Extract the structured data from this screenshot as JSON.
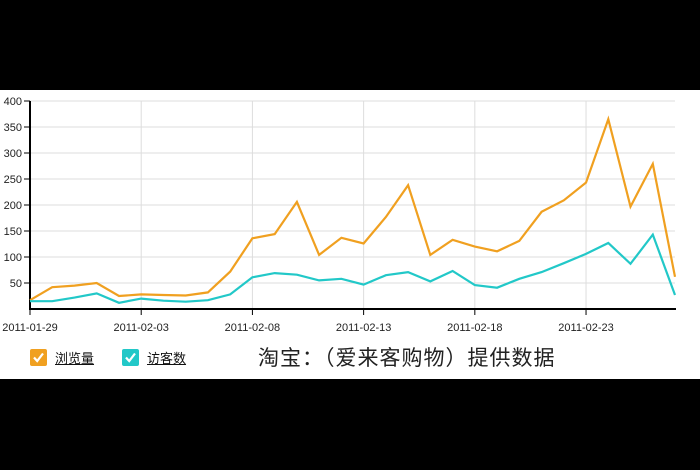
{
  "chart_data": {
    "type": "line",
    "title": "",
    "xlabel": "",
    "ylabel": "",
    "ylim": [
      0,
      400
    ],
    "yticks": [
      50,
      100,
      150,
      200,
      250,
      300,
      350,
      400
    ],
    "xtick_labels": [
      "2011-01-29",
      "2011-02-03",
      "2011-02-08",
      "2011-02-13",
      "2011-02-18",
      "2011-02-23"
    ],
    "grid": true,
    "legend_position": "bottom-left",
    "x": [
      "2011-01-29",
      "2011-01-30",
      "2011-01-31",
      "2011-02-01",
      "2011-02-02",
      "2011-02-03",
      "2011-02-04",
      "2011-02-05",
      "2011-02-06",
      "2011-02-07",
      "2011-02-08",
      "2011-02-09",
      "2011-02-10",
      "2011-02-11",
      "2011-02-12",
      "2011-02-13",
      "2011-02-14",
      "2011-02-15",
      "2011-02-16",
      "2011-02-17",
      "2011-02-18",
      "2011-02-19",
      "2011-02-20",
      "2011-02-21",
      "2011-02-22",
      "2011-02-23",
      "2011-02-24",
      "2011-02-25",
      "2011-02-26",
      "2011-02-27"
    ],
    "series": [
      {
        "name": "浏览量",
        "color": "#F0A020",
        "values": [
          17,
          42,
          45,
          50,
          25,
          28,
          27,
          26,
          32,
          72,
          136,
          144,
          206,
          104,
          137,
          126,
          177,
          238,
          104,
          133,
          120,
          111,
          131,
          187,
          209,
          243,
          365,
          197,
          279,
          62
        ]
      },
      {
        "name": "访客数",
        "color": "#22C8C8",
        "values": [
          15,
          15,
          22,
          30,
          12,
          20,
          16,
          14,
          17,
          28,
          61,
          69,
          66,
          55,
          58,
          47,
          65,
          71,
          53,
          73,
          46,
          41,
          58,
          71,
          88,
          106,
          127,
          87,
          143,
          27
        ]
      }
    ],
    "caption": "淘宝：（爱来客购物）提供数据"
  },
  "legend": {
    "items": [
      {
        "label": "浏览量",
        "color": "#F0A020",
        "checked": true
      },
      {
        "label": "访客数",
        "color": "#22C8C8",
        "checked": true
      }
    ]
  },
  "caption": "淘宝：（爱来客购物）提供数据",
  "colors": {
    "pageview": "#F0A020",
    "visitor": "#22C8C8",
    "grid": "#dddddd",
    "axis": "#000000"
  }
}
